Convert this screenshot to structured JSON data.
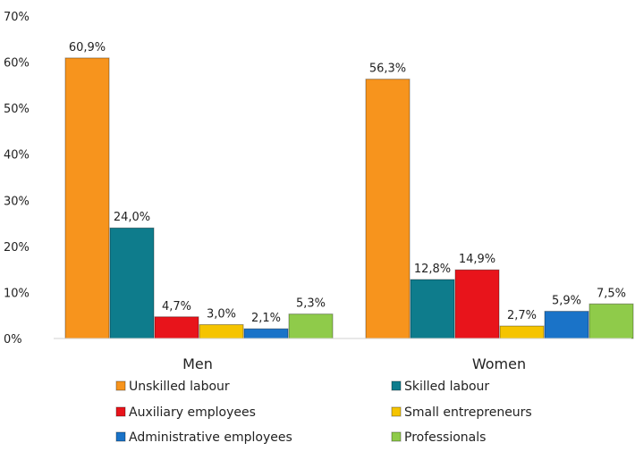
{
  "chart_data": {
    "type": "bar",
    "title": "",
    "xlabel": "",
    "ylabel": "",
    "categories": [
      "Men",
      "Women"
    ],
    "ylim": [
      0,
      70
    ],
    "yticks": [
      "0%",
      "10%",
      "20%",
      "30%",
      "40%",
      "50%",
      "60%",
      "70%"
    ],
    "series": [
      {
        "name": "Unskilled labour",
        "values": [
          60.9,
          56.3
        ],
        "labels": [
          "60,9%",
          "56,3%"
        ],
        "color": "#F7941D"
      },
      {
        "name": "Skilled labour",
        "values": [
          24.0,
          12.8
        ],
        "labels": [
          "24,0%",
          "12,8%"
        ],
        "color": "#0E7C8C"
      },
      {
        "name": "Auxiliary employees",
        "values": [
          4.7,
          14.9
        ],
        "labels": [
          "4,7%",
          "14,9%"
        ],
        "color": "#E8141B"
      },
      {
        "name": "Small entrepreneurs",
        "values": [
          3.0,
          2.7
        ],
        "labels": [
          "3,0%",
          "2,7%"
        ],
        "color": "#F5C400"
      },
      {
        "name": "Administrative employees",
        "values": [
          2.1,
          5.9
        ],
        "labels": [
          "2,1%",
          "5,9%"
        ],
        "color": "#1A73C8"
      },
      {
        "name": "Professionals",
        "values": [
          5.3,
          7.5
        ],
        "labels": [
          "5,3%",
          "7,5%"
        ],
        "color": "#8FCB4A"
      }
    ],
    "legend_position": "bottom",
    "grid": false
  }
}
